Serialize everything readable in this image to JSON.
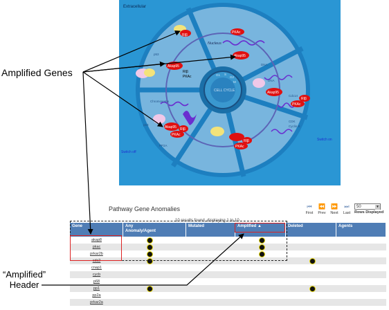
{
  "diagram": {
    "extracellular": "Extracellular",
    "nucleus": "Nucleus",
    "cell_cycle": "CELL CYCLE",
    "phases": [
      "G1",
      "S",
      "G2",
      "M"
    ],
    "switch_off": "Switch off",
    "switch_on": "Switch on",
    "proteins": [
      {
        "ri": "RIβ",
        "pkac": "PKAc",
        "akap": ""
      },
      {
        "ri": "",
        "pkac": "",
        "akap": "Akap95"
      },
      {
        "ri": "RIβ",
        "pkac": "PKAc",
        "akap": "Akap95"
      },
      {
        "ri": "RIβ",
        "pkac": "PKAc",
        "akap": "Akap95"
      },
      {
        "ri": "RIβ",
        "pkac": "PKAc",
        "akap": "Akap95"
      },
      {
        "ri": "RIβ",
        "pkac": "PKAc",
        "akap": ""
      }
    ],
    "small_labels": [
      "p53",
      "DNA",
      "DNA",
      "Chromosome",
      "p53",
      "PP2A",
      "Cdc14",
      "CDK",
      "Cyclin B"
    ],
    "colors": {
      "bg": "#2a96d4",
      "ring": "#79b6dc",
      "dark": "#1a6fa8",
      "purple": "#6a2ecf",
      "red": "#e01010"
    }
  },
  "callouts": {
    "amplified_genes": "Amplified Genes",
    "amplified_header_line1": "“Amplified”",
    "amplified_header_line2": "Header"
  },
  "panel": {
    "title": "Pathway Gene Anomalies",
    "results": "10 results found, displaying 1 to 10",
    "pager": {
      "first": "First",
      "prev": "Prev",
      "next": "Next",
      "last": "Last",
      "rows_value": "50",
      "rows_label": "Rows Displayed"
    },
    "columns": [
      {
        "key": "gene",
        "line1": "Gene",
        "line2": ""
      },
      {
        "key": "any",
        "line1": "Any",
        "line2": "Anomaly/Agent"
      },
      {
        "key": "mutated",
        "line1": "Mutated",
        "line2": ""
      },
      {
        "key": "amplified",
        "line1": "Amplified ▲",
        "line2": ""
      },
      {
        "key": "deleted",
        "line1": "Deleted",
        "line2": ""
      },
      {
        "key": "agents",
        "line1": "Agents",
        "line2": ""
      }
    ],
    "rows": [
      {
        "gene": "akap8",
        "any": true,
        "mutated": false,
        "amplified": true,
        "deleted": false
      },
      {
        "gene": "pkac",
        "any": true,
        "mutated": false,
        "amplified": true,
        "deleted": false
      },
      {
        "gene": "prkar2b",
        "any": true,
        "mutated": false,
        "amplified": true,
        "deleted": false
      },
      {
        "gene": "cdc2",
        "any": true,
        "mutated": false,
        "amplified": false,
        "deleted": true
      },
      {
        "gene": "cnap1",
        "any": false,
        "mutated": false,
        "amplified": false,
        "deleted": false
      },
      {
        "gene": "cycb",
        "any": false,
        "mutated": false,
        "amplified": false,
        "deleted": false
      },
      {
        "gene": "p68",
        "any": false,
        "mutated": false,
        "amplified": false,
        "deleted": false
      },
      {
        "gene": "pp1",
        "any": true,
        "mutated": false,
        "amplified": false,
        "deleted": true
      },
      {
        "gene": "pp2a",
        "any": false,
        "mutated": false,
        "amplified": false,
        "deleted": false
      },
      {
        "gene": "prkar2a",
        "any": false,
        "mutated": false,
        "amplified": false,
        "deleted": false
      }
    ]
  }
}
